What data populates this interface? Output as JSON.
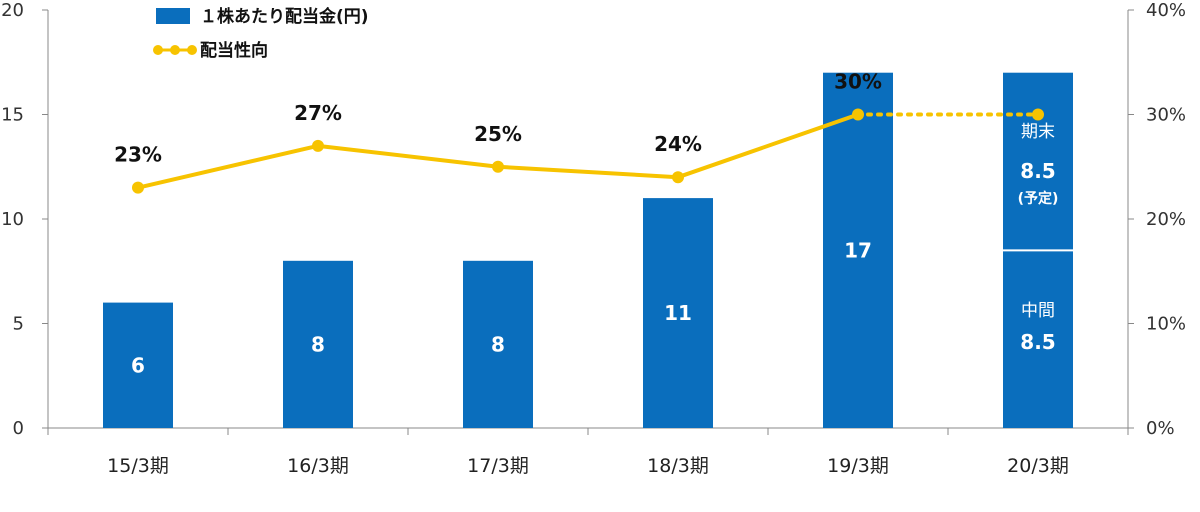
{
  "chart_data": {
    "type": "bar",
    "categories": [
      "15/3期",
      "16/3期",
      "17/3期",
      "18/3期",
      "19/3期",
      "20/3期"
    ],
    "series": [
      {
        "name": "１株あたり配当金(円)",
        "type": "bar",
        "axis": "left",
        "values": [
          6,
          8,
          8,
          11,
          17,
          17
        ],
        "labels": [
          "6",
          "8",
          "8",
          "11",
          "17",
          ""
        ]
      },
      {
        "name": "配当性向",
        "type": "line",
        "axis": "right",
        "values": [
          23,
          27,
          25,
          24,
          30,
          30
        ],
        "labels": [
          "23%",
          "27%",
          "25%",
          "24%",
          "30%",
          ""
        ],
        "dotted_segment_to_last": true
      }
    ],
    "split_bar": {
      "category": "20/3期",
      "lower": {
        "label": "中間",
        "value": "8.5",
        "amount": 8.5
      },
      "upper": {
        "label": "期末",
        "value": "8.5",
        "note": "(予定)",
        "amount": 8.5
      }
    },
    "y_left": {
      "min": 0,
      "max": 20,
      "ticks": [
        "0",
        "5",
        "10",
        "15",
        "20"
      ]
    },
    "y_right": {
      "min": 0,
      "max": 40,
      "ticks": [
        "0%",
        "10%",
        "20%",
        "30%",
        "40%"
      ]
    },
    "colors": {
      "bar": "#0A6EBD",
      "line": "#F7C300"
    },
    "grid": false,
    "legend_position": "top-left"
  }
}
